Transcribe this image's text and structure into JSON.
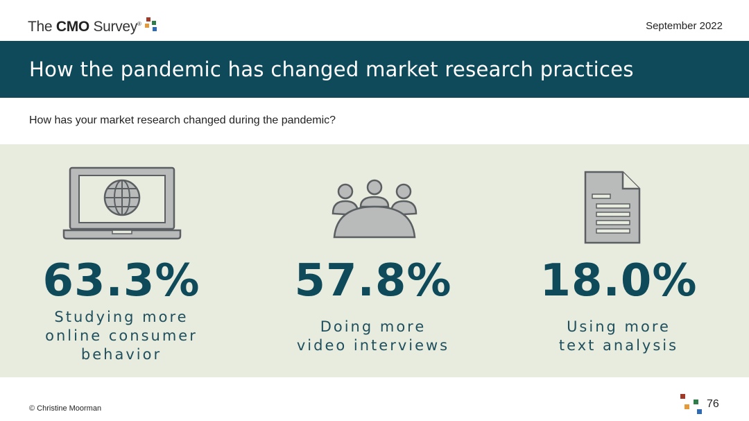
{
  "header": {
    "logo_prefix": "The ",
    "logo_bold": "CMO",
    "logo_suffix": " Survey",
    "logo_mark": "®",
    "date": "September 2022"
  },
  "banner": {
    "title": "How the pandemic has changed market research practices"
  },
  "question": "How has your market research changed during the pandemic?",
  "stats": [
    {
      "value": "63.3%",
      "description": "Studying more\nonline consumer\nbehavior",
      "icon": "laptop-globe-icon"
    },
    {
      "value": "57.8%",
      "description": "Doing more\nvideo interviews",
      "icon": "meeting-people-icon"
    },
    {
      "value": "18.0%",
      "description": "Using more\ntext analysis",
      "icon": "document-icon"
    }
  ],
  "footer": {
    "credit": "© Christine Moorman",
    "page_number": "76"
  },
  "colors": {
    "banner": "#0e4a5a",
    "panel": "#e8ecdf",
    "icon_fill": "#b8bbba",
    "icon_stroke": "#5b5f62",
    "accent_text": "#0e4a5a",
    "dot_red": "#a23a2a",
    "dot_orange": "#e39a3a",
    "dot_green": "#2e7d4a",
    "dot_blue": "#2f6bb3"
  }
}
